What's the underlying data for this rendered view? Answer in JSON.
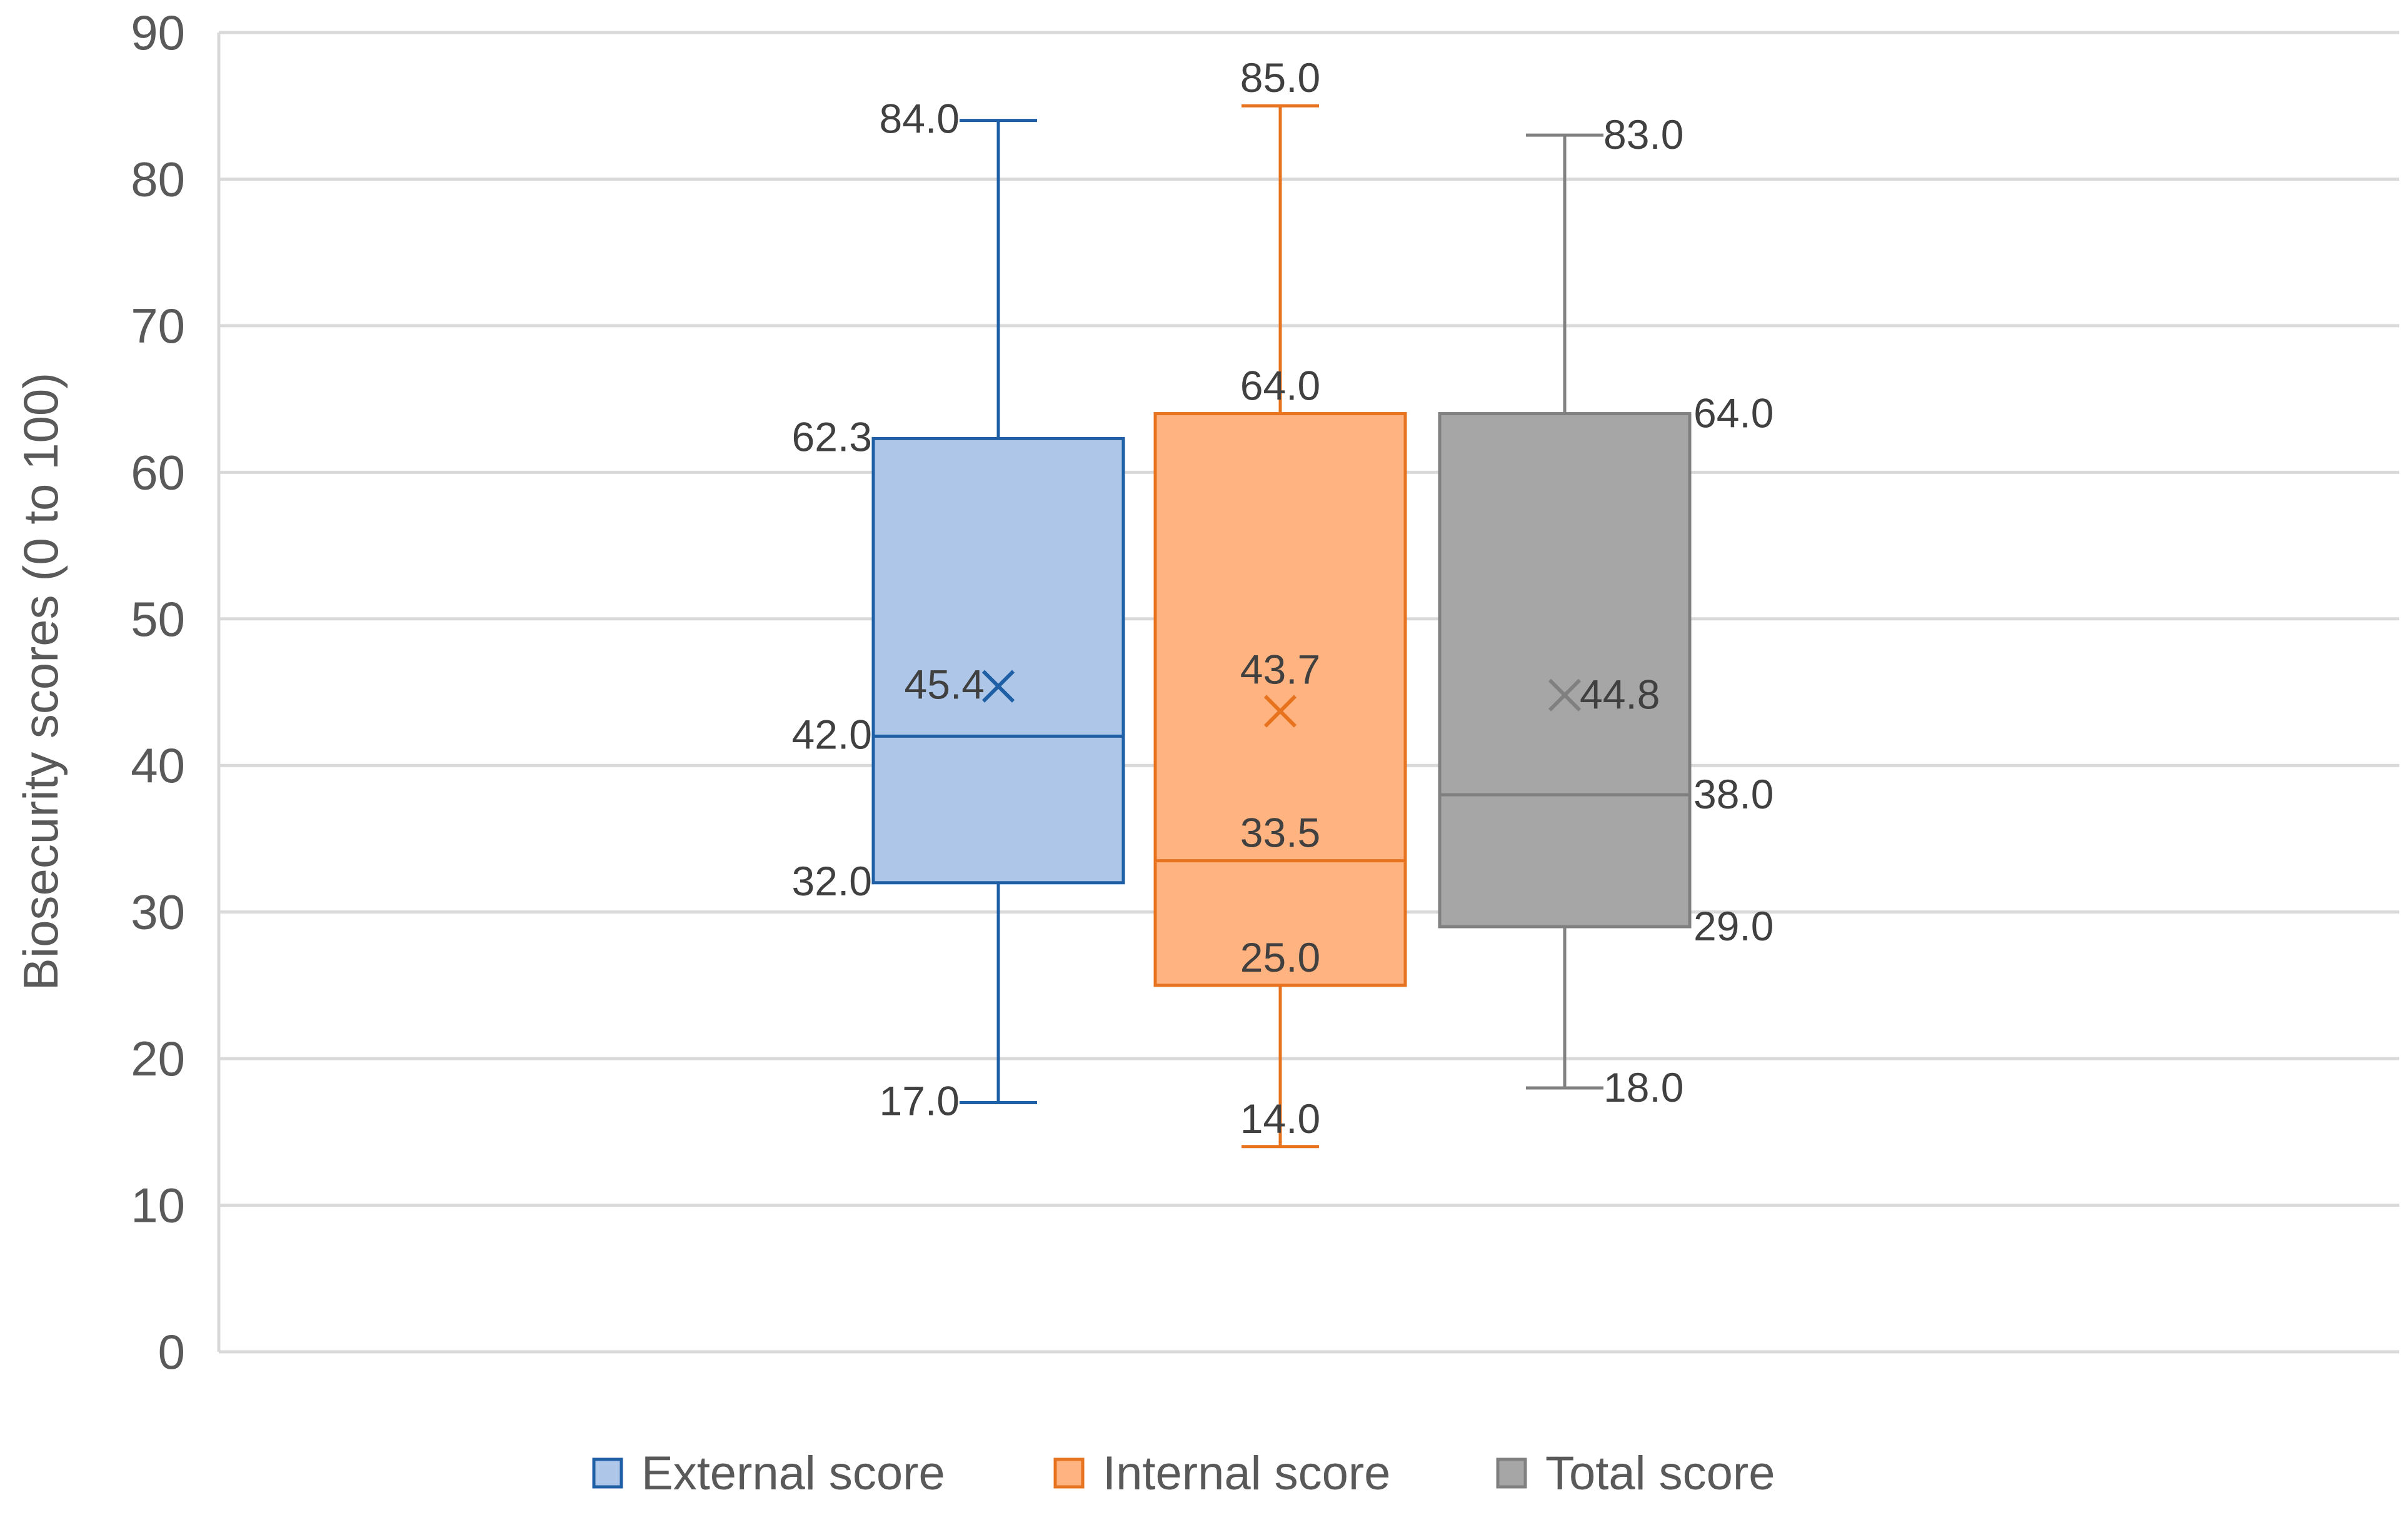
{
  "chart_data": {
    "type": "box",
    "ylabel": "Biosecurity scores (0 to 100)",
    "ylim": [
      0,
      90
    ],
    "yticks": [
      "0",
      "10",
      "20",
      "30",
      "40",
      "50",
      "60",
      "70",
      "80",
      "90"
    ],
    "grid": true,
    "legend_position": "bottom",
    "series": [
      {
        "name": "External score",
        "min": 17.0,
        "q1": 32.0,
        "median": 42.0,
        "q3": 62.3,
        "max": 84.0,
        "mean": 45.4,
        "labels": {
          "min": "17.0",
          "q1": "32.0",
          "median": "42.0",
          "q3": "62.3",
          "max": "84.0",
          "mean": "45.4"
        },
        "fill": "#aec7e8",
        "stroke": "#1f5fa6"
      },
      {
        "name": "Internal score",
        "min": 14.0,
        "q1": 25.0,
        "median": 33.5,
        "q3": 64.0,
        "max": 85.0,
        "mean": 43.7,
        "labels": {
          "min": "14.0",
          "q1": "25.0",
          "median": "33.5",
          "q3": "64.0",
          "max": "85.0",
          "mean": "43.7"
        },
        "fill": "#ffb380",
        "stroke": "#e8731f"
      },
      {
        "name": "Total score",
        "min": 18.0,
        "q1": 29.0,
        "median": 38.0,
        "q3": 64.0,
        "max": 83.0,
        "mean": 44.8,
        "labels": {
          "min": "18.0",
          "q1": "29.0",
          "median": "38.0",
          "q3": "64.0",
          "max": "83.0",
          "mean": "44.8"
        },
        "fill": "#a6a6a6",
        "stroke": "#808080"
      }
    ]
  },
  "colors": {
    "grid": "#d9d9d9",
    "axis_text": "#595959",
    "label_text": "#404040"
  }
}
